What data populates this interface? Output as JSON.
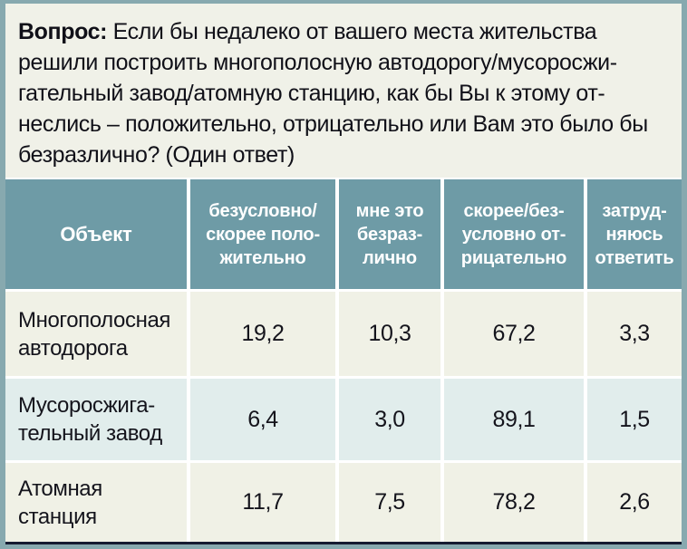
{
  "question": {
    "label": "Вопрос:",
    "text": "Если бы недалеко от вашего места жительства\nрешили построить многополосную автодорогу/мусоросжи-\nгательный завод/атомную станцию, как бы Вы к этому от-\nнеслись – положительно, отрицательно или Вам это было бы\nбезразлично? (Один ответ)"
  },
  "table": {
    "header": {
      "object_label": "Объект",
      "columns": [
        "безусловно/\nскорее поло-\nжительно",
        "мне это\nбезраз-\nлично",
        "скорее/без-\nусловно от-\nрицательно",
        "затруд-\nняюсь\nответить"
      ]
    },
    "rows": [
      {
        "label": "Многополосная\nавтодорога",
        "values": [
          "19,2",
          "10,3",
          "67,2",
          "3,3"
        ]
      },
      {
        "label": "Мусоросжига-\nтельный завод",
        "values": [
          "6,4",
          "3,0",
          "89,1",
          "1,5"
        ]
      },
      {
        "label": "Атомная\nстанция",
        "values": [
          "11,7",
          "7,5",
          "78,2",
          "2,6"
        ]
      }
    ]
  },
  "colors": {
    "frame_border": "#87a9af",
    "header_bg": "#6e9ba6",
    "header_text": "#ffffff",
    "row_cream": "#f0f1e6",
    "row_blue": "#e1edec",
    "question_bg": "#f0f1e8",
    "text": "#101018",
    "bottom_rule": "#151b31"
  },
  "chart_data": {
    "type": "table",
    "title": "Вопрос: Если бы недалеко от вашего места жительства решили построить многополосную автодорогу/мусоросжигательный завод/атомную станцию, как бы Вы к этому отнеслись – положительно, отрицательно или Вам это было бы безразлично? (Один ответ)",
    "columns": [
      "Объект",
      "безусловно/скорее положительно",
      "мне это безразлично",
      "скорее/безусловно отрицательно",
      "затрудняюсь ответить"
    ],
    "rows": [
      [
        "Многополосная автодорога",
        19.2,
        10.3,
        67.2,
        3.3
      ],
      [
        "Мусоросжигательный завод",
        6.4,
        3.0,
        89.1,
        1.5
      ],
      [
        "Атомная станция",
        11.7,
        7.5,
        78.2,
        2.6
      ]
    ]
  }
}
